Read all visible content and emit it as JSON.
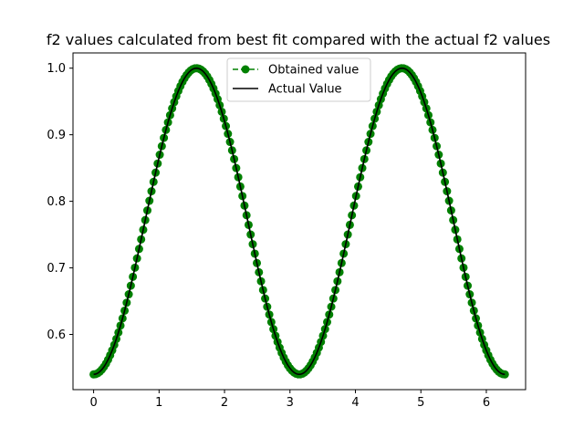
{
  "chart_data": {
    "type": "line",
    "title": "f2 values calculated from best fit compared with the actual f2 values",
    "xlabel": "",
    "ylabel": "",
    "xlim": [
      -0.315,
      6.6
    ],
    "ylim": [
      0.5171,
      1.0229
    ],
    "x_ticks": [
      "0",
      "1",
      "2",
      "3",
      "4",
      "5",
      "6"
    ],
    "y_ticks": [
      "0.6",
      "0.7",
      "0.8",
      "0.9",
      "1.0"
    ],
    "grid": false,
    "legend_position": "upper center",
    "x_range": [
      0,
      6.2832
    ],
    "num_points": 200,
    "series": [
      {
        "name": "Obtained value",
        "style": "dashed line with circle markers",
        "color": "#008000",
        "formula": "0.77 - 0.23*cos(2x)"
      },
      {
        "name": "Actual Value",
        "style": "solid line",
        "color": "#000000",
        "formula": "0.77 - 0.23*cos(2x)"
      }
    ],
    "sample_points": {
      "x": [
        0,
        0.785,
        1.571,
        2.356,
        3.142,
        3.927,
        4.712,
        5.498,
        6.283
      ],
      "y": [
        0.54,
        0.77,
        1.0,
        0.77,
        0.54,
        0.77,
        1.0,
        0.77,
        0.54
      ]
    }
  }
}
